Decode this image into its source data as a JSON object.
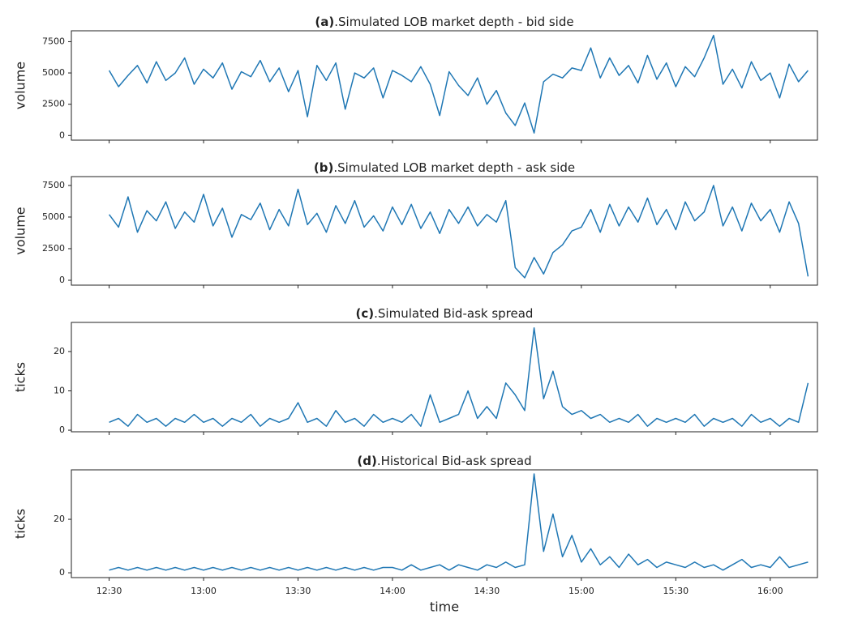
{
  "chart_data": [
    {
      "type": "line",
      "panel": "(a)",
      "title": ".Simulated LOB market depth - bid side",
      "ylabel": "volume",
      "color": "#1f77b4",
      "xlim": [
        "12:18",
        "16:15"
      ],
      "ylim": [
        -370,
        8370
      ],
      "yticks": [
        0,
        2500,
        5000,
        7500
      ],
      "x": [
        "12:30",
        "12:33",
        "12:36",
        "12:39",
        "12:42",
        "12:45",
        "12:48",
        "12:51",
        "12:54",
        "12:57",
        "13:00",
        "13:03",
        "13:06",
        "13:09",
        "13:12",
        "13:15",
        "13:18",
        "13:21",
        "13:24",
        "13:27",
        "13:30",
        "13:33",
        "13:36",
        "13:39",
        "13:42",
        "13:45",
        "13:48",
        "13:51",
        "13:54",
        "13:57",
        "14:00",
        "14:03",
        "14:06",
        "14:09",
        "14:12",
        "14:15",
        "14:18",
        "14:21",
        "14:24",
        "14:27",
        "14:30",
        "14:33",
        "14:36",
        "14:39",
        "14:42",
        "14:45",
        "14:48",
        "14:51",
        "14:54",
        "14:57",
        "15:00",
        "15:03",
        "15:06",
        "15:09",
        "15:12",
        "15:15",
        "15:18",
        "15:21",
        "15:24",
        "15:27",
        "15:30",
        "15:33",
        "15:36",
        "15:39",
        "15:42",
        "15:45",
        "15:48",
        "15:51",
        "15:54",
        "15:57",
        "16:00",
        "16:03",
        "16:06",
        "16:09",
        "16:12"
      ],
      "values": [
        5200,
        3900,
        4800,
        5600,
        4200,
        5900,
        4400,
        5000,
        6200,
        4100,
        5300,
        4600,
        5800,
        3700,
        5100,
        4700,
        6000,
        4300,
        5400,
        3500,
        5200,
        1500,
        5600,
        4400,
        5800,
        2100,
        5000,
        4600,
        5400,
        3000,
        5200,
        4800,
        4300,
        5500,
        4100,
        1600,
        5100,
        4000,
        3200,
        4600,
        2500,
        3600,
        1800,
        800,
        2600,
        200,
        4300,
        4900,
        4600,
        5400,
        5200,
        7000,
        4600,
        6200,
        4800,
        5600,
        4200,
        6400,
        4500,
        5800,
        3900,
        5500,
        4700,
        6200,
        8000,
        4100,
        5300,
        3800,
        5900,
        4400,
        5000,
        3000,
        5700,
        4300,
        5200
      ]
    },
    {
      "type": "line",
      "panel": "(b)",
      "title": ".Simulated LOB market depth - ask side",
      "ylabel": "volume",
      "color": "#1f77b4",
      "xlim": [
        "12:18",
        "16:15"
      ],
      "ylim": [
        -385,
        8200
      ],
      "yticks": [
        0,
        2500,
        5000,
        7500
      ],
      "x": [
        "12:30",
        "12:33",
        "12:36",
        "12:39",
        "12:42",
        "12:45",
        "12:48",
        "12:51",
        "12:54",
        "12:57",
        "13:00",
        "13:03",
        "13:06",
        "13:09",
        "13:12",
        "13:15",
        "13:18",
        "13:21",
        "13:24",
        "13:27",
        "13:30",
        "13:33",
        "13:36",
        "13:39",
        "13:42",
        "13:45",
        "13:48",
        "13:51",
        "13:54",
        "13:57",
        "14:00",
        "14:03",
        "14:06",
        "14:09",
        "14:12",
        "14:15",
        "14:18",
        "14:21",
        "14:24",
        "14:27",
        "14:30",
        "14:33",
        "14:36",
        "14:39",
        "14:42",
        "14:45",
        "14:48",
        "14:51",
        "14:54",
        "14:57",
        "15:00",
        "15:03",
        "15:06",
        "15:09",
        "15:12",
        "15:15",
        "15:18",
        "15:21",
        "15:24",
        "15:27",
        "15:30",
        "15:33",
        "15:36",
        "15:39",
        "15:42",
        "15:45",
        "15:48",
        "15:51",
        "15:54",
        "15:57",
        "16:00",
        "16:03",
        "16:06",
        "16:09",
        "16:12"
      ],
      "values": [
        5200,
        4200,
        6600,
        3800,
        5500,
        4700,
        6200,
        4100,
        5400,
        4600,
        6800,
        4300,
        5700,
        3400,
        5200,
        4800,
        6100,
        4000,
        5600,
        4300,
        7200,
        4400,
        5300,
        3800,
        5900,
        4500,
        6300,
        4200,
        5100,
        3900,
        5800,
        4400,
        6000,
        4100,
        5400,
        3700,
        5600,
        4500,
        5800,
        4300,
        5200,
        4600,
        6300,
        1000,
        200,
        1800,
        500,
        2200,
        2800,
        3900,
        4200,
        5600,
        3800,
        6000,
        4300,
        5800,
        4600,
        6500,
        4400,
        5600,
        4000,
        6200,
        4700,
        5400,
        7500,
        4300,
        5800,
        3900,
        6100,
        4700,
        5600,
        3800,
        6200,
        4500,
        300
      ]
    },
    {
      "type": "line",
      "panel": "(c)",
      "title": ".Simulated Bid-ask spread",
      "ylabel": "ticks",
      "color": "#1f77b4",
      "xlim": [
        "12:18",
        "16:15"
      ],
      "ylim": [
        -0.4,
        27.4
      ],
      "yticks": [
        0,
        10,
        20
      ],
      "x": [
        "12:30",
        "12:33",
        "12:36",
        "12:39",
        "12:42",
        "12:45",
        "12:48",
        "12:51",
        "12:54",
        "12:57",
        "13:00",
        "13:03",
        "13:06",
        "13:09",
        "13:12",
        "13:15",
        "13:18",
        "13:21",
        "13:24",
        "13:27",
        "13:30",
        "13:33",
        "13:36",
        "13:39",
        "13:42",
        "13:45",
        "13:48",
        "13:51",
        "13:54",
        "13:57",
        "14:00",
        "14:03",
        "14:06",
        "14:09",
        "14:12",
        "14:15",
        "14:18",
        "14:21",
        "14:24",
        "14:27",
        "14:30",
        "14:33",
        "14:36",
        "14:39",
        "14:42",
        "14:45",
        "14:48",
        "14:51",
        "14:54",
        "14:57",
        "15:00",
        "15:03",
        "15:06",
        "15:09",
        "15:12",
        "15:15",
        "15:18",
        "15:21",
        "15:24",
        "15:27",
        "15:30",
        "15:33",
        "15:36",
        "15:39",
        "15:42",
        "15:45",
        "15:48",
        "15:51",
        "15:54",
        "15:57",
        "16:00",
        "16:03",
        "16:06",
        "16:09",
        "16:12"
      ],
      "values": [
        2,
        3,
        1,
        4,
        2,
        3,
        1,
        3,
        2,
        4,
        2,
        3,
        1,
        3,
        2,
        4,
        1,
        3,
        2,
        3,
        7,
        2,
        3,
        1,
        5,
        2,
        3,
        1,
        4,
        2,
        3,
        2,
        4,
        1,
        9,
        2,
        3,
        4,
        10,
        3,
        6,
        3,
        12,
        9,
        5,
        26,
        8,
        15,
        6,
        4,
        5,
        3,
        4,
        2,
        3,
        2,
        4,
        1,
        3,
        2,
        3,
        2,
        4,
        1,
        3,
        2,
        3,
        1,
        4,
        2,
        3,
        1,
        3,
        2,
        12
      ]
    },
    {
      "type": "line",
      "panel": "(d)",
      "title": ".Historical Bid-ask spread",
      "ylabel": "ticks",
      "xlabel": "time",
      "color": "#1f77b4",
      "xlim": [
        "12:18",
        "16:15"
      ],
      "ylim": [
        -1.8,
        38.5
      ],
      "yticks": [
        0,
        20
      ],
      "xticks": [
        "12:30",
        "13:00",
        "13:30",
        "14:00",
        "14:30",
        "15:00",
        "15:30",
        "16:00"
      ],
      "x": [
        "12:30",
        "12:33",
        "12:36",
        "12:39",
        "12:42",
        "12:45",
        "12:48",
        "12:51",
        "12:54",
        "12:57",
        "13:00",
        "13:03",
        "13:06",
        "13:09",
        "13:12",
        "13:15",
        "13:18",
        "13:21",
        "13:24",
        "13:27",
        "13:30",
        "13:33",
        "13:36",
        "13:39",
        "13:42",
        "13:45",
        "13:48",
        "13:51",
        "13:54",
        "13:57",
        "14:00",
        "14:03",
        "14:06",
        "14:09",
        "14:12",
        "14:15",
        "14:18",
        "14:21",
        "14:24",
        "14:27",
        "14:30",
        "14:33",
        "14:36",
        "14:39",
        "14:42",
        "14:45",
        "14:48",
        "14:51",
        "14:54",
        "14:57",
        "15:00",
        "15:03",
        "15:06",
        "15:09",
        "15:12",
        "15:15",
        "15:18",
        "15:21",
        "15:24",
        "15:27",
        "15:30",
        "15:33",
        "15:36",
        "15:39",
        "15:42",
        "15:45",
        "15:48",
        "15:51",
        "15:54",
        "15:57",
        "16:00",
        "16:03",
        "16:06",
        "16:09",
        "16:12"
      ],
      "values": [
        1,
        2,
        1,
        2,
        1,
        2,
        1,
        2,
        1,
        2,
        1,
        2,
        1,
        2,
        1,
        2,
        1,
        2,
        1,
        2,
        1,
        2,
        1,
        2,
        1,
        2,
        1,
        2,
        1,
        2,
        2,
        1,
        3,
        1,
        2,
        3,
        1,
        3,
        2,
        1,
        3,
        2,
        4,
        2,
        3,
        37,
        8,
        22,
        6,
        14,
        4,
        9,
        3,
        6,
        2,
        7,
        3,
        5,
        2,
        4,
        3,
        2,
        4,
        2,
        3,
        1,
        3,
        5,
        2,
        3,
        2,
        6,
        2,
        3,
        4
      ]
    }
  ]
}
